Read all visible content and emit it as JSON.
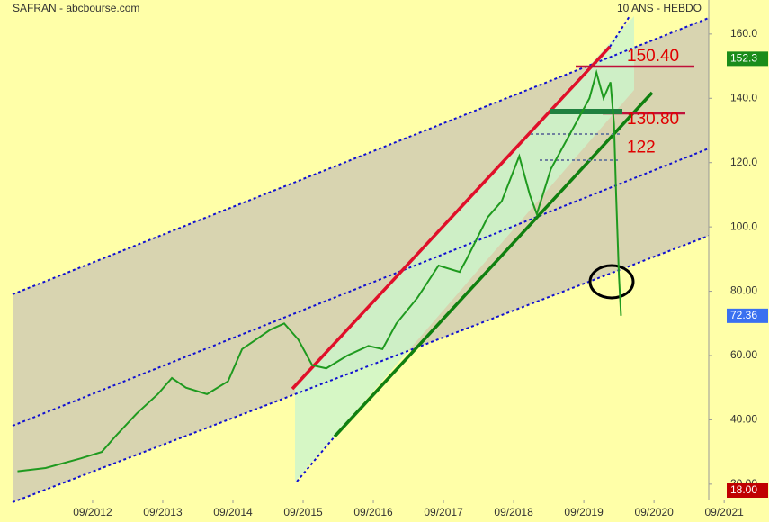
{
  "chart_data": {
    "type": "line",
    "title": "SAFRAN - abcbourse.com",
    "subtitle": "10 ANS - HEBDO",
    "xlim": [
      2011.53,
      2021.45
    ],
    "ylim": [
      15.2,
      170.6
    ],
    "xticks": [
      {
        "value": 2012.67,
        "label": "09/2012"
      },
      {
        "value": 2013.67,
        "label": "09/2013"
      },
      {
        "value": 2014.67,
        "label": "09/2014"
      },
      {
        "value": 2015.67,
        "label": "09/2015"
      },
      {
        "value": 2016.67,
        "label": "09/2016"
      },
      {
        "value": 2017.67,
        "label": "09/2017"
      },
      {
        "value": 2018.67,
        "label": "09/2018"
      },
      {
        "value": 2019.67,
        "label": "09/2019"
      },
      {
        "value": 2020.67,
        "label": "09/2020"
      },
      {
        "value": 2021.67,
        "label": "09/2021"
      }
    ],
    "yticks": [
      {
        "value": 20,
        "label": "20.00"
      },
      {
        "value": 40,
        "label": "40.00"
      },
      {
        "value": 60,
        "label": "60.00"
      },
      {
        "value": 80,
        "label": "80.00"
      },
      {
        "value": 100,
        "label": "100.0"
      },
      {
        "value": 120,
        "label": "120.0"
      },
      {
        "value": 140,
        "label": "140.0"
      },
      {
        "value": 160,
        "label": "160.0"
      }
    ],
    "series": [
      {
        "name": "SAFRAN",
        "color": "#1f9a1f",
        "x": [
          2011.6,
          2012.0,
          2012.5,
          2012.8,
          2013.0,
          2013.3,
          2013.6,
          2013.8,
          2014.0,
          2014.3,
          2014.6,
          2014.8,
          2015.0,
          2015.2,
          2015.4,
          2015.6,
          2015.8,
          2016.0,
          2016.3,
          2016.6,
          2016.8,
          2017.0,
          2017.3,
          2017.6,
          2017.9,
          2018.0,
          2018.3,
          2018.5,
          2018.75,
          2018.9,
          2019.0,
          2019.2,
          2019.4,
          2019.6,
          2019.75,
          2019.85,
          2019.95,
          2020.05,
          2020.1,
          2020.13,
          2020.17,
          2020.2
        ],
        "values": [
          24,
          25,
          28,
          30,
          35,
          42,
          48,
          53,
          50,
          48,
          52,
          62,
          65,
          68,
          70,
          65,
          57,
          56,
          60,
          63,
          62,
          70,
          78,
          88,
          86,
          90,
          103,
          108,
          122,
          110,
          104,
          118,
          126,
          134,
          140,
          148,
          140,
          145,
          132,
          110,
          85,
          72.36
        ]
      }
    ],
    "levels": [
      {
        "value": 150.4,
        "label": "150.40"
      },
      {
        "value": 130.8,
        "label": "130.80"
      },
      {
        "value": 122,
        "label": "122"
      }
    ],
    "price_markers": [
      {
        "value": 152.3,
        "label": "152.3",
        "color": "#1a8c1a"
      },
      {
        "value": 72.36,
        "label": "72.36",
        "color": "#3a70f0"
      },
      {
        "value": 18,
        "label": "18.00",
        "color": "#c00000"
      }
    ]
  }
}
